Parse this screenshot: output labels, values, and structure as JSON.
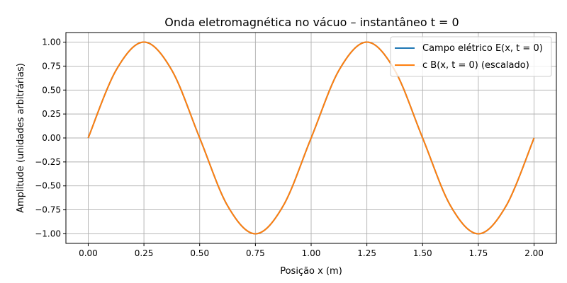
{
  "chart_data": {
    "type": "line",
    "title": "Onda eletromagnética no vácuo – instantâneo t = 0",
    "xlabel": "Posição x (m)",
    "ylabel": "Amplitude (unidades arbitrárias)",
    "xlim": [
      -0.1,
      2.1
    ],
    "ylim": [
      -1.1,
      1.1
    ],
    "x_ticks": [
      0.0,
      0.25,
      0.5,
      0.75,
      1.0,
      1.25,
      1.5,
      1.75,
      2.0
    ],
    "x_tick_labels": [
      "0.00",
      "0.25",
      "0.50",
      "0.75",
      "1.00",
      "1.25",
      "1.50",
      "1.75",
      "2.00"
    ],
    "y_ticks": [
      1.0,
      0.75,
      0.5,
      0.25,
      0.0,
      -0.25,
      -0.5,
      -0.75,
      -1.0
    ],
    "y_tick_labels": [
      "1.00",
      "0.75",
      "0.50",
      "0.25",
      "0.00",
      "−0.25",
      "−0.50",
      "−0.75",
      "−1.00"
    ],
    "grid": true,
    "legend_position": "top-right",
    "series": [
      {
        "name": "Campo elétrico E(x, t = 0)",
        "color": "#1f77b4",
        "x": [
          0.0,
          0.125,
          0.25,
          0.375,
          0.5,
          0.625,
          0.75,
          0.875,
          1.0,
          1.125,
          1.25,
          1.375,
          1.5,
          1.625,
          1.75,
          1.875,
          2.0
        ],
        "y": [
          0.0,
          0.707,
          1.0,
          0.707,
          0.0,
          -0.707,
          -1.0,
          -0.707,
          0.0,
          0.707,
          1.0,
          0.707,
          0.0,
          -0.707,
          -1.0,
          -0.707,
          0.0
        ]
      },
      {
        "name": "c B(x, t = 0) (escalado)",
        "color": "#ff7f0e",
        "x": [
          0.0,
          0.125,
          0.25,
          0.375,
          0.5,
          0.625,
          0.75,
          0.875,
          1.0,
          1.125,
          1.25,
          1.375,
          1.5,
          1.625,
          1.75,
          1.875,
          2.0
        ],
        "y": [
          0.0,
          0.707,
          1.0,
          0.707,
          0.0,
          -0.707,
          -1.0,
          -0.707,
          0.0,
          0.707,
          1.0,
          0.707,
          0.0,
          -0.707,
          -1.0,
          -0.707,
          0.0
        ]
      }
    ]
  }
}
